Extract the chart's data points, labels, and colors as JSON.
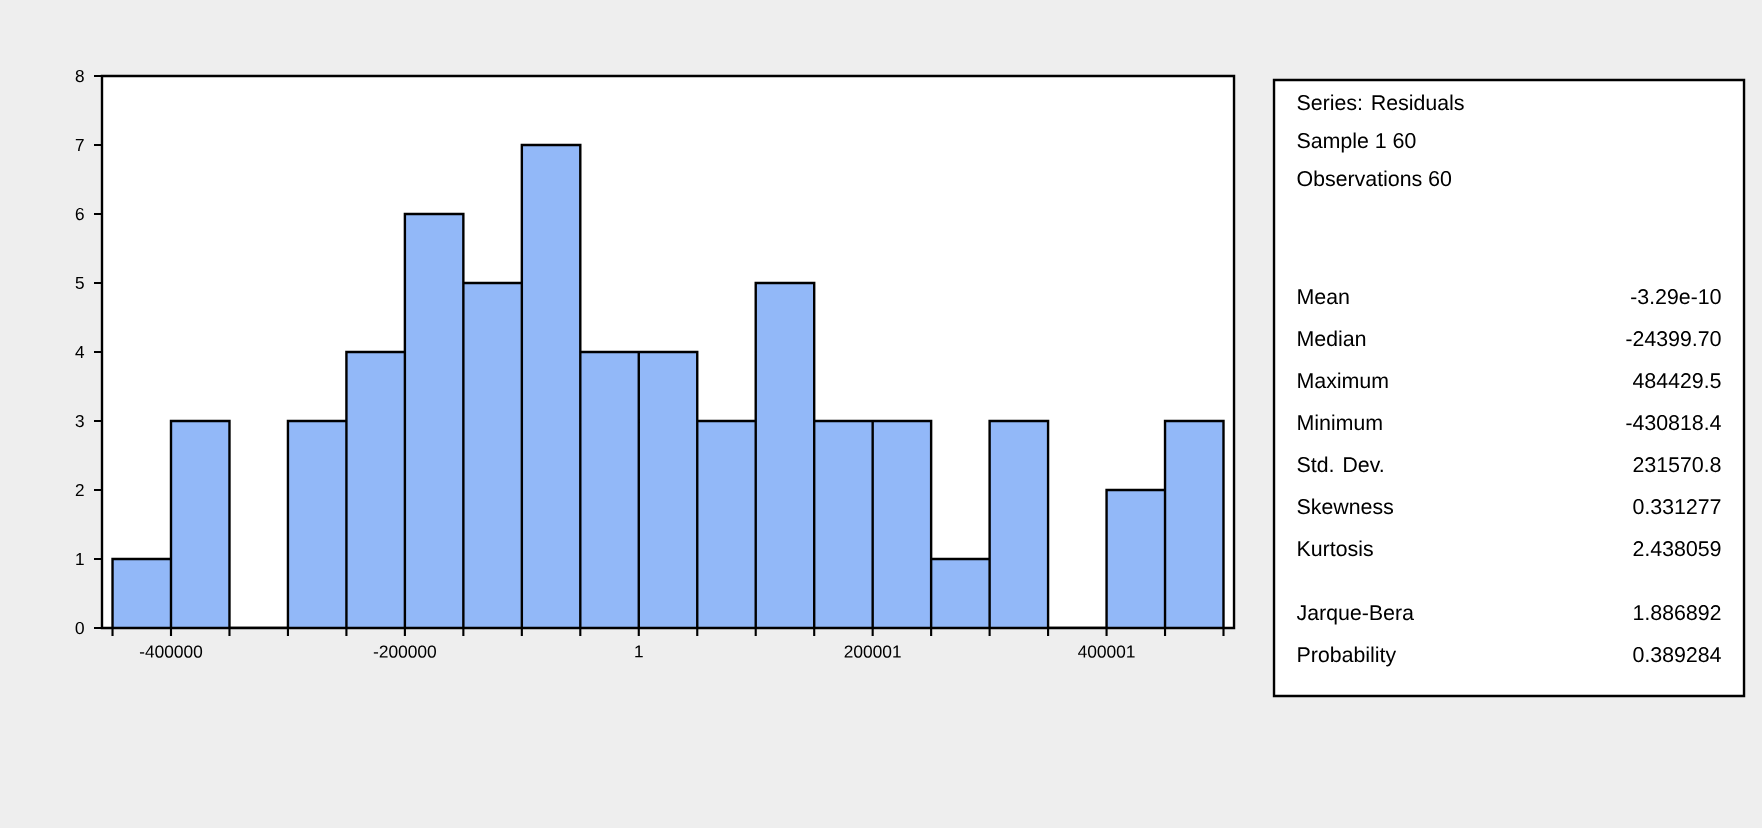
{
  "chart_data": {
    "type": "histogram",
    "bins": [
      -450000,
      -400000,
      -350000,
      -300000,
      -250000,
      -200000,
      -150000,
      -100000,
      -50000,
      0,
      50000,
      100000,
      150000,
      200000,
      250000,
      300000,
      350000,
      400000,
      450000,
      500000
    ],
    "values": [
      1,
      3,
      0,
      3,
      4,
      6,
      5,
      7,
      4,
      4,
      3,
      5,
      3,
      3,
      1,
      3,
      0,
      2,
      3
    ],
    "color": "#92b8f8",
    "xlim": [
      -459000,
      509000
    ],
    "ylim": [
      0,
      8
    ],
    "xticks": [
      {
        "value": -450000,
        "label": null
      },
      -400000,
      {
        "value": -350000,
        "label": null
      },
      {
        "value": -300000,
        "label": null
      },
      {
        "value": -250000,
        "label": null
      },
      -200000,
      {
        "value": -150000,
        "label": null
      },
      {
        "value": -100000,
        "label": null
      },
      {
        "value": -50000,
        "label": null
      },
      1,
      {
        "value": 50000,
        "label": null
      },
      {
        "value": 100000,
        "label": null
      },
      {
        "value": 150000,
        "label": null
      },
      200001,
      {
        "value": 250000,
        "label": null
      },
      {
        "value": 300000,
        "label": null
      },
      {
        "value": 350000,
        "label": null
      },
      400001,
      {
        "value": 450000,
        "label": null
      },
      {
        "value": 500000,
        "label": null
      }
    ],
    "yticks": [
      0,
      1,
      2,
      3,
      4,
      5,
      6,
      7,
      8
    ],
    "annotations": [
      "Series: Residuals",
      "Sample 1 60",
      "Observations 60",
      "Mean",
      "-3.29e-10",
      "Median",
      "-24399.70",
      "Maximum",
      "484429.5",
      "Minimum",
      "-430818.4",
      "Std. Dev.",
      "231570.8",
      "Skewness",
      "0.331277",
      "Kurtosis",
      "2.438059",
      "Jarque-Bera",
      "1.886892",
      "Probability",
      "0.389284"
    ]
  }
}
